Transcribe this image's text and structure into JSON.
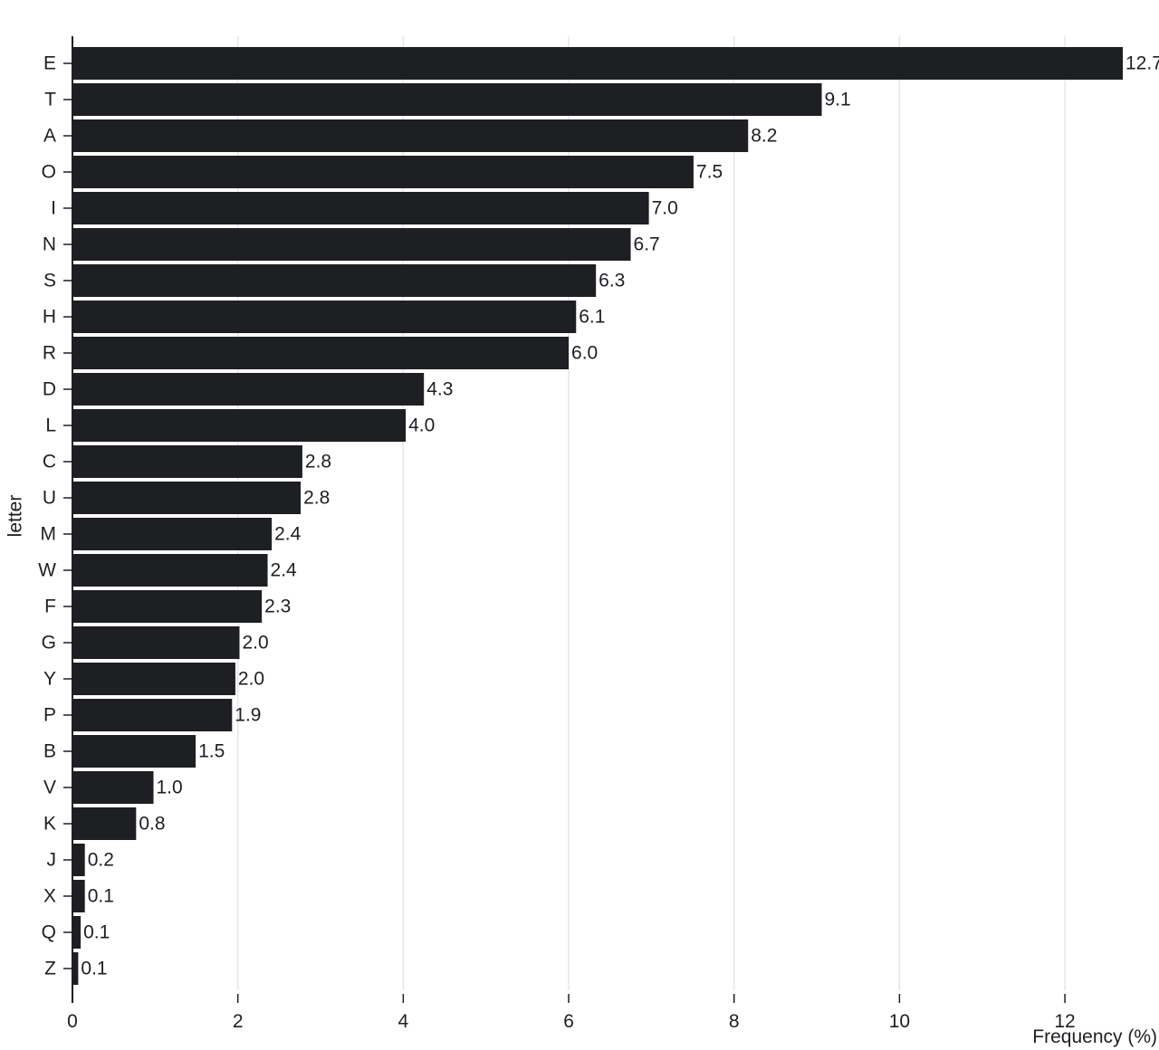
{
  "chart_data": {
    "type": "bar",
    "orientation": "horizontal",
    "title": "",
    "xlabel": "Frequency (%)",
    "ylabel": "letter",
    "xlim": [
      0,
      12.7
    ],
    "xticks": [
      "0",
      "2",
      "4",
      "6",
      "8",
      "10",
      "12"
    ],
    "grid": "vertical",
    "bar_color": "#1d1f23",
    "categories": [
      "E",
      "T",
      "A",
      "O",
      "I",
      "N",
      "S",
      "H",
      "R",
      "D",
      "L",
      "C",
      "U",
      "M",
      "W",
      "F",
      "G",
      "Y",
      "P",
      "B",
      "V",
      "K",
      "J",
      "X",
      "Q",
      "Z"
    ],
    "values": [
      12.7,
      9.06,
      8.17,
      7.51,
      6.97,
      6.75,
      6.33,
      6.09,
      6.0,
      4.25,
      4.03,
      2.78,
      2.76,
      2.41,
      2.36,
      2.29,
      2.02,
      1.97,
      1.93,
      1.49,
      0.98,
      0.77,
      0.15,
      0.15,
      0.1,
      0.07
    ],
    "value_labels": [
      "12.7",
      "9.1",
      "8.2",
      "7.5",
      "7.0",
      "6.7",
      "6.3",
      "6.1",
      "6.0",
      "4.3",
      "4.0",
      "2.8",
      "2.8",
      "2.4",
      "2.4",
      "2.3",
      "2.0",
      "2.0",
      "1.9",
      "1.5",
      "1.0",
      "0.8",
      "0.2",
      "0.1",
      "0.1",
      "0.1"
    ]
  }
}
